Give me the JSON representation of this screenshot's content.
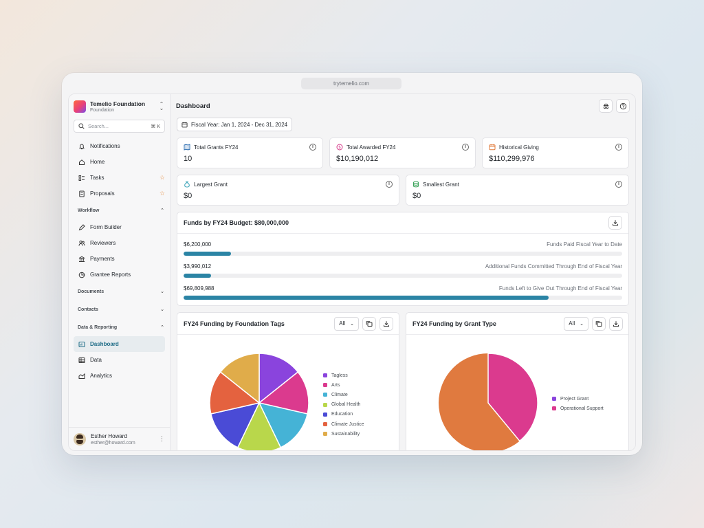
{
  "browser": {
    "url": "trytemelio.com"
  },
  "sidebar": {
    "org_name": "Temelio Foundation",
    "org_type": "Foundation",
    "search_placeholder": "Search...",
    "search_shortcut": "⌘ K",
    "items": [
      {
        "label": "Notifications",
        "icon": "bell-icon"
      },
      {
        "label": "Home",
        "icon": "home-icon"
      },
      {
        "label": "Tasks",
        "icon": "checklist-icon",
        "starred": true
      },
      {
        "label": "Proposals",
        "icon": "document-icon",
        "starred": true
      }
    ],
    "workflow": {
      "label": "Workflow",
      "items": [
        {
          "label": "Form Builder",
          "icon": "pen-icon"
        },
        {
          "label": "Reviewers",
          "icon": "people-icon"
        },
        {
          "label": "Payments",
          "icon": "bank-icon"
        },
        {
          "label": "Grantee Reports",
          "icon": "pie-chart-icon"
        }
      ]
    },
    "documents_label": "Documents",
    "contacts_label": "Contacts",
    "reporting": {
      "label": "Data & Reporting",
      "items": [
        {
          "label": "Dashboard",
          "icon": "dashboard-icon",
          "active": true
        },
        {
          "label": "Data",
          "icon": "table-icon"
        },
        {
          "label": "Analytics",
          "icon": "analytics-icon"
        }
      ]
    },
    "user": {
      "name": "Esther Howard",
      "email": "esther@howard.com"
    }
  },
  "header": {
    "title": "Dashboard"
  },
  "fiscal_year": "Fiscal Year: Jan 1, 2024 - Dec 31, 2024",
  "stats": [
    {
      "label": "Total Grants FY24",
      "value": "10",
      "icon": "book-icon",
      "color": "#2b6cb0"
    },
    {
      "label": "Total Awarded FY24",
      "value": "$10,190,012",
      "icon": "dollar-icon",
      "color": "#d63a8a"
    },
    {
      "label": "Historical Giving",
      "value": "$110,299,976",
      "icon": "calendar-icon",
      "color": "#e07a3a"
    },
    {
      "label": "Largest Grant",
      "value": "$0",
      "icon": "money-bag-icon",
      "color": "#3aa3b8"
    },
    {
      "label": "Smallest Grant",
      "value": "$0",
      "icon": "coins-icon",
      "color": "#3aa35a"
    }
  ],
  "budget": {
    "title": "Funds by FY24 Budget: $80,000,000",
    "rows": [
      {
        "amount": "$6,200,000",
        "label": "Funds Paid Fiscal Year to Date",
        "fraction": 0.1075
      },
      {
        "amount": "$3,990,012",
        "label": "Additional Funds Committed Through End of Fiscal Year",
        "fraction": 0.0625
      },
      {
        "amount": "$69,809,988",
        "label": "Funds Left to Give Out Through End of Fiscal Year",
        "fraction": 0.8325
      }
    ]
  },
  "charts": {
    "filter_label": "All",
    "tags_title": "FY24 Funding by Foundation Tags",
    "type_title": "FY24 Funding by Grant Type"
  },
  "chart_data": [
    {
      "type": "pie",
      "title": "FY24 Funding by Foundation Tags",
      "categories": [
        "Tagless",
        "Arts",
        "Climate",
        "Global Health",
        "Education",
        "Climate Justice",
        "Sustainability"
      ],
      "values": [
        14.29,
        14.29,
        14.29,
        14.29,
        14.29,
        14.29,
        14.29
      ],
      "colors": [
        "#8a44dd",
        "#db3a8e",
        "#45b3d6",
        "#b9d74b",
        "#4a4bd6",
        "#e4623f",
        "#e0ac4a"
      ],
      "legend": "right"
    },
    {
      "type": "pie",
      "title": "FY24 Funding by Grant Type",
      "categories": [
        "Project Grant",
        "Operational Support"
      ],
      "values": [
        0,
        39
      ],
      "colors": [
        "#8a44dd",
        "#db3a8e"
      ],
      "remainder_color": "#e07a3f",
      "legend": "right"
    }
  ]
}
